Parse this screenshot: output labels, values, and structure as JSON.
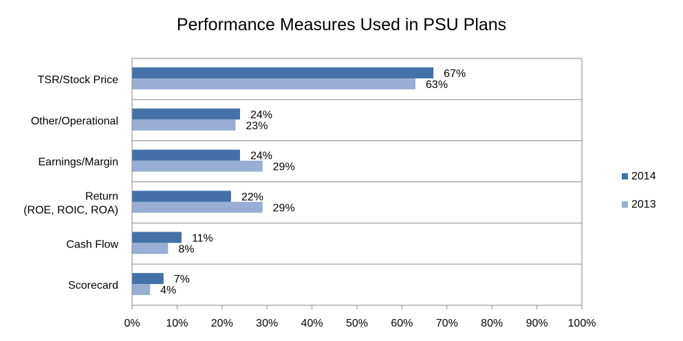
{
  "chart_data": {
    "type": "bar",
    "orientation": "horizontal",
    "title": "Performance Measures Used in PSU Plans",
    "categories": [
      [
        "TSR/Stock Price"
      ],
      [
        "Other/Operational"
      ],
      [
        "Earnings/Margin"
      ],
      [
        "Return",
        "(ROE, ROIC, ROA)"
      ],
      [
        "Cash Flow"
      ],
      [
        "Scorecard"
      ]
    ],
    "series": [
      {
        "name": "2014",
        "color": "#4472a8",
        "values": [
          67,
          24,
          24,
          22,
          11,
          7
        ],
        "labels": [
          "67%",
          "24%",
          "24%",
          "22%",
          "11%",
          "7%"
        ]
      },
      {
        "name": "2013",
        "color": "#98aed4",
        "values": [
          63,
          23,
          29,
          29,
          8,
          4
        ],
        "labels": [
          "63%",
          "23%",
          "29%",
          "29%",
          "8%",
          "4%"
        ]
      }
    ],
    "xlim": [
      0,
      100
    ],
    "xticks": [
      "0%",
      "10%",
      "20%",
      "30%",
      "40%",
      "50%",
      "60%",
      "70%",
      "80%",
      "90%",
      "100%"
    ],
    "grid": true,
    "legend": "right"
  }
}
